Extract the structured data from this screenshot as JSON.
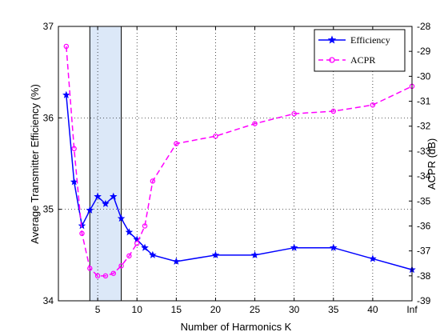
{
  "chart_data": {
    "type": "line",
    "xlabel": "Number of Harmonics K",
    "ylabel_left": "Average Transmitter Efficiency (%)",
    "ylabel_right": "ACPR (dB)",
    "x_tick_labels": [
      "5",
      "10",
      "15",
      "20",
      "25",
      "30",
      "35",
      "40",
      "Inf"
    ],
    "x_tick_values": [
      5,
      10,
      15,
      20,
      25,
      30,
      35,
      40,
      45
    ],
    "xlim": [
      0,
      45
    ],
    "ylim_left": [
      34,
      37
    ],
    "ylim_right": [
      -39,
      -28
    ],
    "yticks_left": [
      34,
      35,
      36,
      37
    ],
    "yticks_right": [
      -39,
      -38,
      -37,
      -36,
      -35,
      -34,
      -33,
      -32,
      -31,
      -30,
      -29,
      -28
    ],
    "grid": "dotted",
    "legend_position": "top-right",
    "highlight_region": {
      "x_start": 4,
      "x_end": 8,
      "color": "#dce8f8"
    },
    "series": [
      {
        "name": "Efficiency",
        "axis": "left",
        "color": "#0000ff",
        "line_style": "solid",
        "marker": "star",
        "x": [
          1,
          2,
          3,
          4,
          5,
          6,
          7,
          8,
          9,
          10,
          11,
          12,
          15,
          20,
          25,
          30,
          35,
          40,
          45
        ],
        "y": [
          36.25,
          35.3,
          34.82,
          34.99,
          35.14,
          35.06,
          35.14,
          34.9,
          34.75,
          34.67,
          34.58,
          34.5,
          34.43,
          34.5,
          34.5,
          34.58,
          34.58,
          34.46,
          34.34
        ]
      },
      {
        "name": "ACPR",
        "axis": "right",
        "color": "#ff00ff",
        "line_style": "dashed",
        "marker": "circle",
        "x": [
          1,
          2,
          3,
          4,
          5,
          6,
          7,
          8,
          9,
          10,
          11,
          12,
          15,
          20,
          25,
          30,
          35,
          40,
          45
        ],
        "y": [
          -28.8,
          -32.9,
          -36.3,
          -37.7,
          -38.0,
          -38.0,
          -37.9,
          -37.6,
          -37.2,
          -36.7,
          -36.0,
          -34.2,
          -32.7,
          -32.4,
          -31.9,
          -31.5,
          -31.4,
          -31.15,
          -30.4
        ]
      }
    ]
  }
}
